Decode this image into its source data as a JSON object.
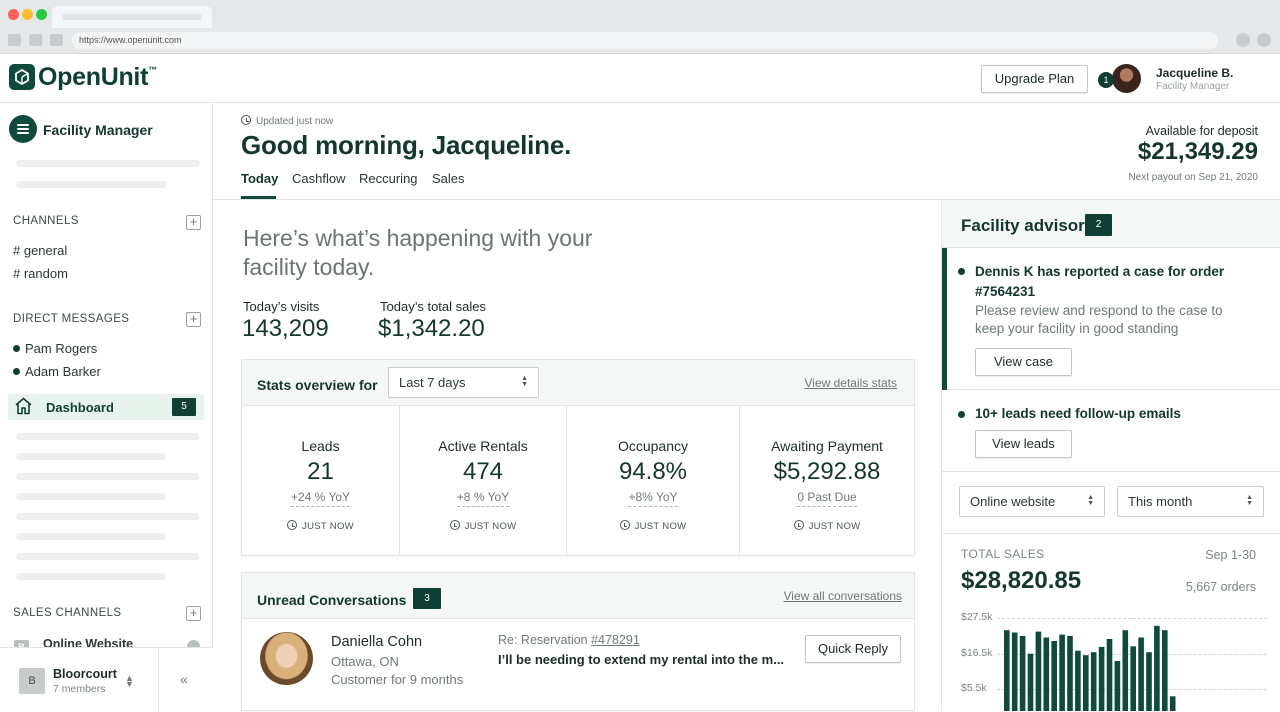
{
  "browser": {
    "url": "https://www.openunit.com"
  },
  "header": {
    "logo": "OpenUnit",
    "logo_tm": "™",
    "upgrade_label": "Upgrade Plan",
    "notification_count": "1",
    "user_name": "Jacqueline B.",
    "user_role": "Facility Manager"
  },
  "sidebar": {
    "title": "Facility Manager",
    "channels_title": "CHANNELS",
    "channels": [
      "# general",
      "# random"
    ],
    "dm_title": "DIRECT MESSAGES",
    "dms": [
      "Pam Rogers",
      "Adam Barker"
    ],
    "dashboard_label": "Dashboard",
    "dashboard_count": "5",
    "sales_channels_title": "SALES CHANNELS",
    "online_website": "Online Website",
    "online_website_badge": "B",
    "org_badge": "B",
    "org_name": "Bloorcourt",
    "org_members": "7 members"
  },
  "page": {
    "updated": "Updated just now",
    "greeting": "Good morning, Jacqueline.",
    "tabs": [
      "Today",
      "Cashflow",
      "Reccuring",
      "Sales"
    ],
    "deposit_label": "Available for deposit",
    "deposit_amount": "$21,349.29",
    "next_payout": "Next payout on Sep 21, 2020"
  },
  "main": {
    "intro": "Here’s what’s happening with your facility today.",
    "visits_label": "Today’s visits",
    "visits_value": "143,209",
    "sales_label": "Today’s total sales",
    "sales_value": "$1,342.20",
    "stats_title": "Stats overview for",
    "stats_period": "Last 7 days",
    "stats_link": "View details stats",
    "stats": [
      {
        "label": "Leads",
        "value": "21",
        "sub": "+24 % YoY",
        "time": "JUST NOW"
      },
      {
        "label": "Active Rentals",
        "value": "474",
        "sub": "+8 % YoY",
        "time": "JUST NOW"
      },
      {
        "label": "Occupancy",
        "value": "94.8%",
        "sub": "+8% YoY",
        "time": "JUST NOW"
      },
      {
        "label": "Awaiting Payment",
        "value": "$5,292.88",
        "sub": "0 Past Due",
        "time": "JUST NOW"
      }
    ],
    "conv_title": "Unread Conversations",
    "conv_count": "3",
    "conv_link": "View all conversations",
    "conversation": {
      "name": "Daniella Cohn",
      "location": "Ottawa, ON",
      "since": "Customer for 9 months",
      "re_prefix": "Re: Reservation ",
      "re_link": "#478291",
      "message": "I’ll be needing to extend my rental into the m...",
      "reply_label": "Quick Reply"
    }
  },
  "advisor": {
    "title": "Facility advisor",
    "count": "2",
    "item1_title": "Dennis K has reported a case for order #7564231",
    "item1_desc": "Please review and respond to the case to keep your facility in good standing",
    "item1_button": "View case",
    "item2_title": "10+ leads need follow-up emails",
    "item2_button": "View leads",
    "channel_select": "Online website",
    "period_select": "This month",
    "total_sales_label": "TOTAL SALES",
    "total_sales_range": "Sep 1-30",
    "total_sales_amount": "$28,820.85",
    "total_orders": "5,667 orders"
  },
  "chart_data": {
    "type": "bar",
    "title": "",
    "yticks": [
      "$27.5k",
      "$16.5k",
      "$5.5k"
    ],
    "ylim": [
      0,
      33000
    ],
    "values": [
      27500,
      26700,
      25500,
      19500,
      27000,
      25000,
      23800,
      26000,
      25500,
      20500,
      19000,
      20000,
      21800,
      24500,
      17000,
      27500,
      22000,
      25000,
      20000,
      29000,
      27500,
      5000
    ],
    "color": "#0f4a3d"
  }
}
